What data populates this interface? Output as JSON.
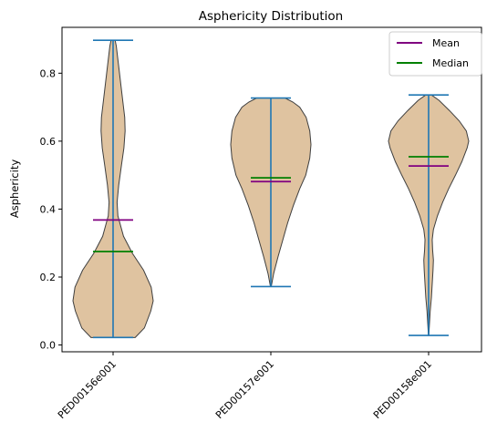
{
  "chart_data": {
    "type": "violin",
    "title": "Asphericity Distribution",
    "xlabel": "",
    "ylabel": "Asphericity",
    "ylim": [
      -0.02,
      0.935
    ],
    "yticks": [
      0.0,
      0.2,
      0.4,
      0.6,
      0.8
    ],
    "ytick_labels": [
      "0.0",
      "0.2",
      "0.4",
      "0.6",
      "0.8"
    ],
    "categories": [
      "PED00156e001",
      "PED00157e001",
      "PED00158e001"
    ],
    "legend": {
      "position": "top-right",
      "entries": [
        {
          "label": "Mean",
          "color": "#800080"
        },
        {
          "label": "Median",
          "color": "#008000"
        }
      ]
    },
    "colors": {
      "violin_fill": "#dfc3a0",
      "violin_edge": "#3f3f3f",
      "extrema_line": "#1f77b4",
      "mean_line": "#800080",
      "median_line": "#008000"
    },
    "violins": [
      {
        "name": "PED00156e001",
        "min": 0.022,
        "max": 0.897,
        "mean": 0.368,
        "median": 0.275,
        "profile": [
          [
            0.022,
            0.55
          ],
          [
            0.05,
            0.78
          ],
          [
            0.1,
            0.94
          ],
          [
            0.13,
            1.0
          ],
          [
            0.17,
            0.95
          ],
          [
            0.22,
            0.76
          ],
          [
            0.27,
            0.48
          ],
          [
            0.32,
            0.26
          ],
          [
            0.38,
            0.12
          ],
          [
            0.42,
            0.1
          ],
          [
            0.47,
            0.14
          ],
          [
            0.53,
            0.21
          ],
          [
            0.58,
            0.27
          ],
          [
            0.63,
            0.3
          ],
          [
            0.67,
            0.29
          ],
          [
            0.72,
            0.24
          ],
          [
            0.77,
            0.19
          ],
          [
            0.81,
            0.15
          ],
          [
            0.85,
            0.11
          ],
          [
            0.88,
            0.08
          ],
          [
            0.897,
            0.05
          ]
        ]
      },
      {
        "name": "PED00157e001",
        "min": 0.172,
        "max": 0.727,
        "mean": 0.481,
        "median": 0.492,
        "profile": [
          [
            0.172,
            0.01
          ],
          [
            0.21,
            0.07
          ],
          [
            0.26,
            0.18
          ],
          [
            0.31,
            0.3
          ],
          [
            0.36,
            0.42
          ],
          [
            0.41,
            0.56
          ],
          [
            0.46,
            0.72
          ],
          [
            0.5,
            0.87
          ],
          [
            0.55,
            0.97
          ],
          [
            0.59,
            1.0
          ],
          [
            0.63,
            0.97
          ],
          [
            0.67,
            0.88
          ],
          [
            0.7,
            0.72
          ],
          [
            0.715,
            0.55
          ],
          [
            0.727,
            0.35
          ]
        ]
      },
      {
        "name": "PED00158e001",
        "min": 0.028,
        "max": 0.736,
        "mean": 0.527,
        "median": 0.554,
        "profile": [
          [
            0.028,
            0.005
          ],
          [
            0.06,
            0.02
          ],
          [
            0.1,
            0.04
          ],
          [
            0.14,
            0.07
          ],
          [
            0.18,
            0.09
          ],
          [
            0.22,
            0.11
          ],
          [
            0.25,
            0.12
          ],
          [
            0.28,
            0.1
          ],
          [
            0.31,
            0.09
          ],
          [
            0.34,
            0.12
          ],
          [
            0.38,
            0.22
          ],
          [
            0.42,
            0.35
          ],
          [
            0.46,
            0.5
          ],
          [
            0.5,
            0.67
          ],
          [
            0.54,
            0.83
          ],
          [
            0.58,
            0.96
          ],
          [
            0.6,
            1.0
          ],
          [
            0.63,
            0.94
          ],
          [
            0.66,
            0.76
          ],
          [
            0.69,
            0.52
          ],
          [
            0.72,
            0.26
          ],
          [
            0.736,
            0.07
          ]
        ]
      }
    ]
  }
}
